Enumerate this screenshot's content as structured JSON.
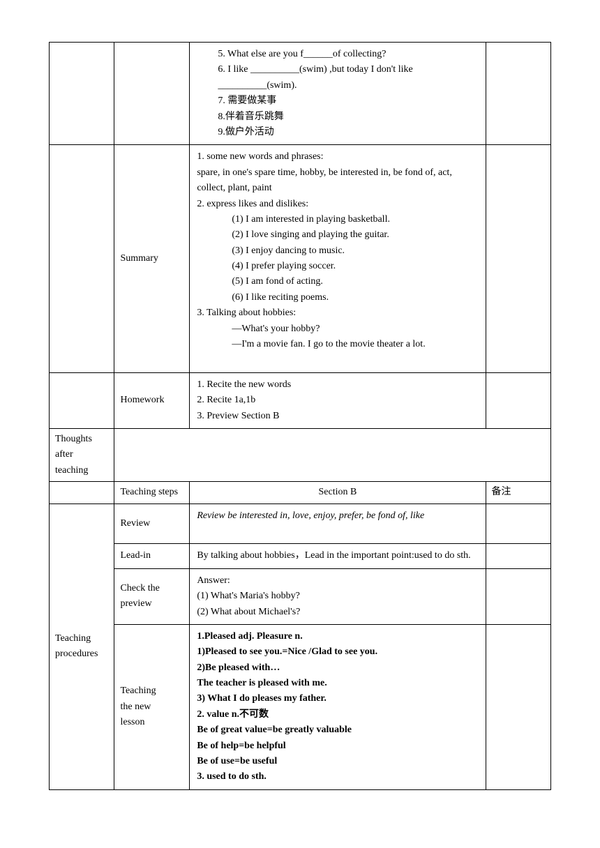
{
  "row1": {
    "l1": "5. What else are you f______of collecting?",
    "l2": "6. I like __________(swim) ,but today I don't like",
    "l3": "__________(swim).",
    "l4": "7. 需要做某事",
    "l5": "8.伴着音乐跳舞",
    "l6": "9.做户外活动"
  },
  "summary": {
    "label": "Summary",
    "l1": "1. some new words and phrases:",
    "l2": " spare, in one's spare time, hobby, be interested in, be fond of, act, collect, plant, paint",
    "l3": "2. express likes and dislikes:",
    "l4": "(1) I am interested in playing basketball.",
    "l5": "(2) I love singing and playing the guitar.",
    "l6": "(3) I enjoy dancing to music.",
    "l7": "(4) I prefer playing soccer.",
    "l8": "(5) I am fond of acting.",
    "l9": "(6) I like reciting poems.",
    "l10": "3. Talking about hobbies:",
    "l11": "—What's your hobby?",
    "l12": "—I'm a movie fan. I go to the movie theater a lot."
  },
  "homework": {
    "label": "Homework",
    "l1": "1.  Recite the new words",
    "l2": "2.  Recite 1a,1b",
    "l3": "3.    Preview Section B"
  },
  "thoughts": {
    "label1": "Thoughts",
    "label2": "after",
    "label3": "teaching"
  },
  "header": {
    "steps": "Teaching steps",
    "section": "Section B",
    "note": "备注"
  },
  "procedures": {
    "label1": "Teaching",
    "label2": "procedures"
  },
  "review": {
    "label": "Review",
    "content": "Review be interested in, love, enjoy, prefer, be fond of, like"
  },
  "leadin": {
    "label": "Lead-in",
    "content": "By talking about hobbies，Lead in the important point:used to do sth."
  },
  "check": {
    "label1": "Check the",
    "label2": "preview",
    "l1": "Answer:",
    "l2": "(1) What's Maria's hobby?",
    "l3": "(2) What about Michael's?"
  },
  "lesson": {
    "label1": "Teaching",
    "label2": "the new",
    "label3": "lesson",
    "l1": "1.Pleased adj.     Pleasure n.",
    "l2": "1)Pleased to see you.=Nice /Glad to see you.",
    "l3": "2)Be pleased with…",
    "l4": "The teacher is pleased with me.",
    "l5": "3) What I do pleases my father.",
    "l6": "2. value n.不可数",
    "l7": "Be of great value=be greatly valuable",
    "l8": "Be of help=be helpful",
    "l9": "Be of use=be useful",
    "l10": "3. used to do sth."
  }
}
